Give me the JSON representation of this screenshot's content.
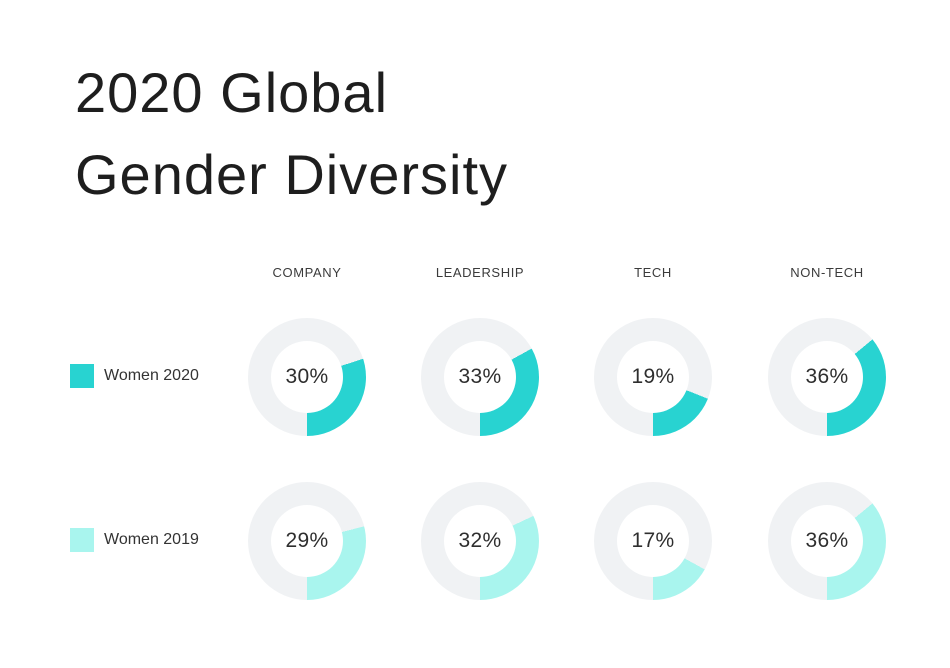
{
  "page": {
    "background": "#FFFFFF"
  },
  "title": {
    "line1": "2020 Global",
    "line2": "Gender Diversity"
  },
  "chart_data": {
    "type": "donut",
    "title": "2020 Global Gender Diversity",
    "categories": [
      "COMPANY",
      "LEADERSHIP",
      "TECH",
      "NON-TECH"
    ],
    "series": [
      {
        "name": "Women 2020",
        "color": "#28D3D1",
        "values": [
          30,
          33,
          19,
          36
        ]
      },
      {
        "name": "Women 2019",
        "color": "#A9F5EE",
        "values": [
          29,
          32,
          17,
          36
        ]
      }
    ],
    "value_suffix": "%",
    "track_color": "#F0F2F4",
    "arc": {
      "end_angle_deg": 180,
      "direction": "clockwise"
    },
    "legend_position": "left",
    "value_labels": "center",
    "grid": false
  }
}
